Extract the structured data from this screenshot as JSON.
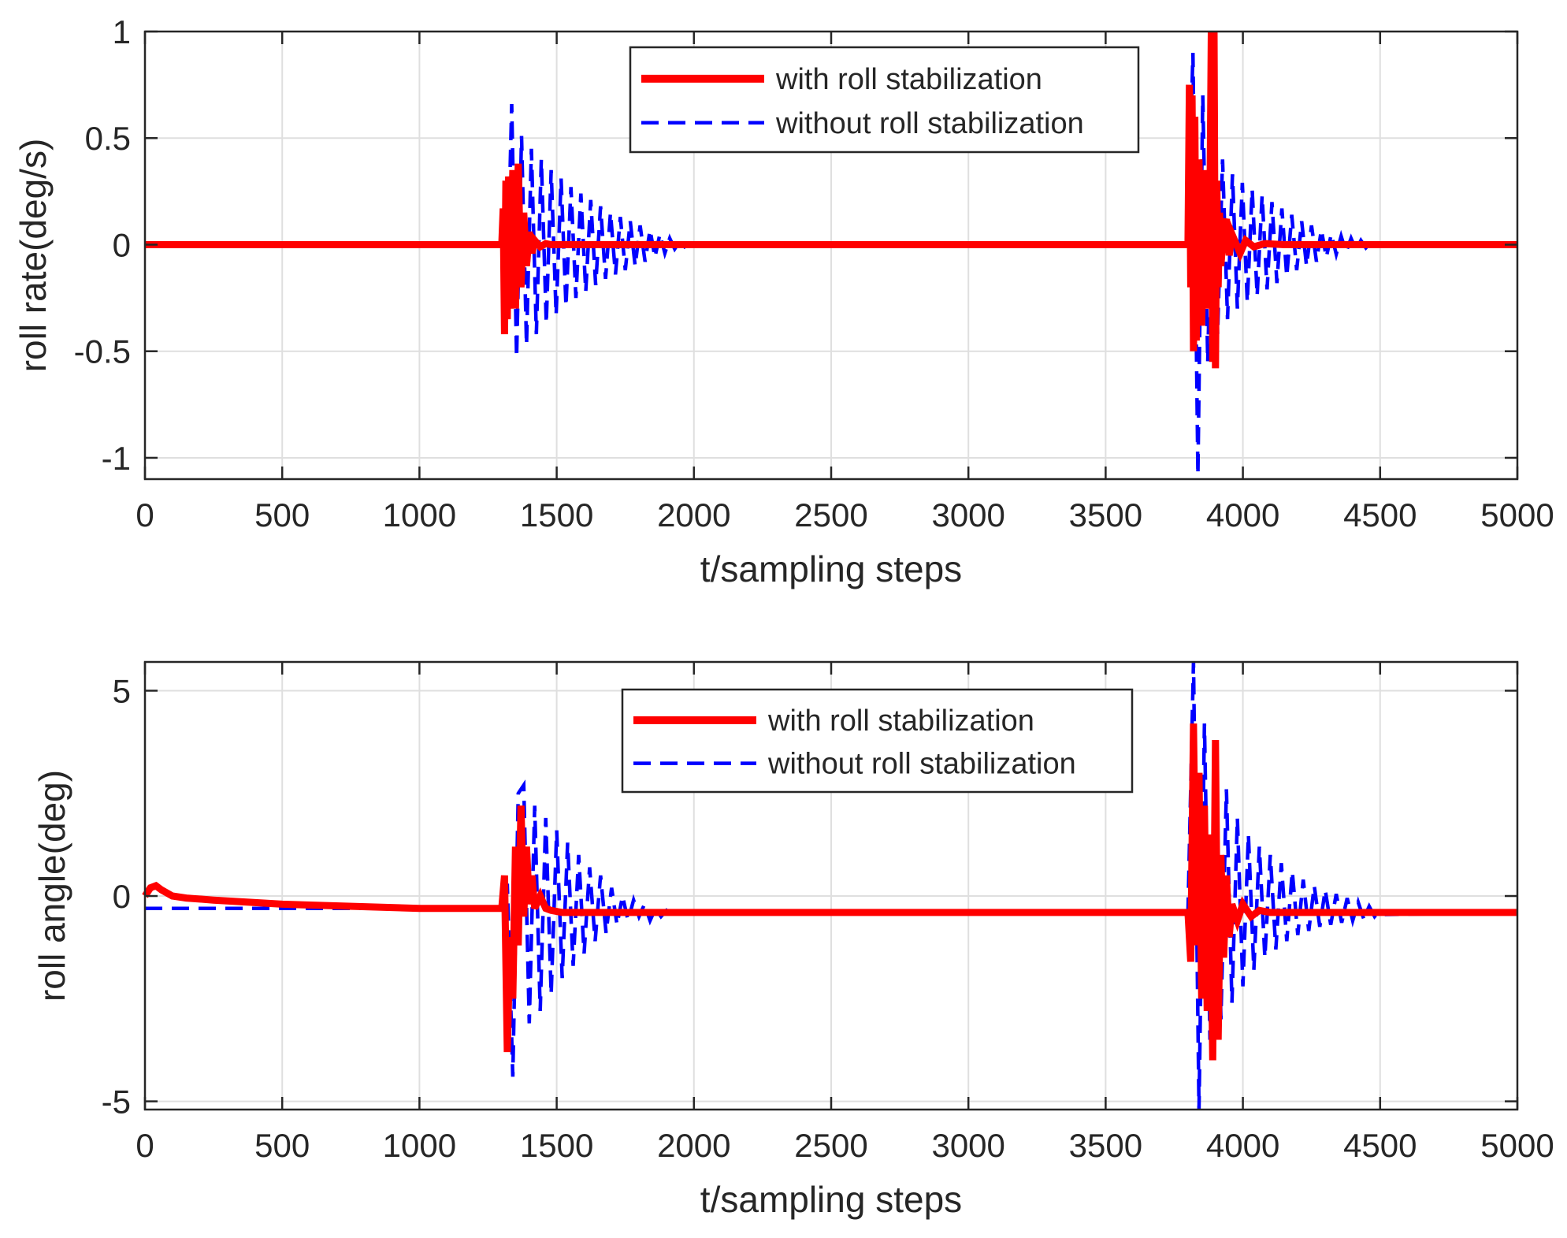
{
  "figure": {
    "background": "#ffffff",
    "axis_color": "#262626",
    "grid_color": "#dfdfdf",
    "series_colors": {
      "with": "#ff0000",
      "without": "#0000ff"
    }
  },
  "chart_data": [
    {
      "type": "line",
      "title": "",
      "xlabel": "t/sampling steps",
      "ylabel": "roll rate(deg/s)",
      "xlim": [
        0,
        5000
      ],
      "ylim": [
        -1.1,
        1
      ],
      "xticks": [
        0,
        500,
        1000,
        1500,
        2000,
        2500,
        3000,
        3500,
        4000,
        4500,
        5000
      ],
      "xtick_labels": [
        "0",
        "500",
        "1000",
        "1500",
        "2000",
        "2500",
        "3000",
        "3500",
        "4000",
        "4500",
        "5000"
      ],
      "yticks": [
        -1,
        -0.5,
        0,
        0.5,
        1
      ],
      "ytick_labels": [
        "-1",
        "-0.5",
        "0",
        "0.5",
        "1"
      ],
      "grid": true,
      "legend_position": "top-center",
      "series": [
        {
          "name": "with roll stabilization",
          "style": "solid",
          "x": [
            0,
            1300,
            1305,
            1310,
            1315,
            1320,
            1325,
            1330,
            1340,
            1350,
            1360,
            1370,
            1380,
            1390,
            1400,
            1410,
            1420,
            1440,
            1460,
            1480,
            1500,
            1540,
            1600,
            3800,
            3805,
            3810,
            3815,
            3820,
            3825,
            3830,
            3840,
            3850,
            3860,
            3870,
            3880,
            3885,
            3890,
            3895,
            3900,
            3905,
            3910,
            3915,
            3920,
            3930,
            3940,
            3950,
            3960,
            3970,
            3990,
            4010,
            4040,
            4080,
            4150,
            4300,
            5000
          ],
          "y": [
            0,
            0,
            0.17,
            -0.42,
            0.3,
            -0.35,
            0.32,
            -0.3,
            0.35,
            -0.3,
            0.38,
            -0.2,
            0.15,
            -0.1,
            0.06,
            -0.04,
            0.02,
            -0.01,
            0.005,
            0,
            0,
            0,
            0,
            0,
            0.75,
            -0.2,
            0.7,
            -0.5,
            0.6,
            -0.45,
            0.4,
            -0.38,
            0.35,
            -0.3,
            0.2,
            1.0,
            -0.55,
            1.0,
            -0.58,
            0.3,
            -0.2,
            0.15,
            -0.1,
            0.08,
            0.12,
            -0.05,
            0.05,
            0.02,
            -0.04,
            0.02,
            -0.01,
            0.005,
            0,
            0,
            0
          ]
        },
        {
          "name": "without roll stabilization",
          "style": "dashed",
          "x": [
            0,
            1300,
            1318,
            1336,
            1354,
            1372,
            1390,
            1408,
            1426,
            1444,
            1462,
            1480,
            1498,
            1516,
            1534,
            1552,
            1570,
            1588,
            1606,
            1624,
            1642,
            1660,
            1678,
            1696,
            1714,
            1732,
            1750,
            1768,
            1786,
            1804,
            1822,
            1840,
            1858,
            1876,
            1894,
            1912,
            1930,
            1948,
            1966,
            1984,
            2002,
            2020,
            3800,
            3818,
            3836,
            3854,
            3872,
            3890,
            3908,
            3926,
            3944,
            3962,
            3980,
            3998,
            4016,
            4034,
            4052,
            4070,
            4088,
            4106,
            4124,
            4142,
            4160,
            4178,
            4196,
            4214,
            4232,
            4250,
            4268,
            4286,
            4304,
            4322,
            4340,
            4358,
            4376,
            4394,
            4412,
            4430,
            4448,
            4466,
            4484,
            4502,
            4520,
            5000
          ],
          "y": [
            0,
            0,
            -0.3,
            0.66,
            -0.53,
            0.51,
            -0.47,
            0.45,
            -0.42,
            0.4,
            -0.37,
            0.35,
            -0.33,
            0.31,
            -0.29,
            0.27,
            -0.25,
            0.24,
            -0.22,
            0.21,
            -0.19,
            0.18,
            -0.16,
            0.15,
            -0.14,
            0.13,
            -0.12,
            0.11,
            -0.1,
            0.09,
            -0.08,
            0.07,
            -0.06,
            0.05,
            -0.04,
            0.03,
            -0.02,
            0.015,
            -0.01,
            0.005,
            0,
            0,
            0,
            0.9,
            -1.08,
            0.7,
            -0.55,
            0.5,
            -0.42,
            0.4,
            -0.35,
            0.33,
            -0.3,
            0.29,
            -0.27,
            0.26,
            -0.24,
            0.23,
            -0.21,
            0.2,
            -0.18,
            0.17,
            -0.15,
            0.14,
            -0.12,
            0.11,
            -0.1,
            0.09,
            -0.08,
            0.07,
            -0.06,
            0.05,
            -0.045,
            0.04,
            -0.035,
            0.03,
            -0.025,
            0.02,
            -0.015,
            0.01,
            -0.005,
            0.003,
            0,
            0
          ]
        }
      ]
    },
    {
      "type": "line",
      "title": "",
      "xlabel": "t/sampling steps",
      "ylabel": "roll angle(deg)",
      "xlim": [
        0,
        5000
      ],
      "ylim": [
        -5.2,
        5.7
      ],
      "xticks": [
        0,
        500,
        1000,
        1500,
        2000,
        2500,
        3000,
        3500,
        4000,
        4500,
        5000
      ],
      "xtick_labels": [
        "0",
        "500",
        "1000",
        "1500",
        "2000",
        "2500",
        "3000",
        "3500",
        "4000",
        "4500",
        "5000"
      ],
      "yticks": [
        -5,
        0,
        5
      ],
      "ytick_labels": [
        "-5",
        "0",
        "5"
      ],
      "grid": true,
      "legend_position": "top-center",
      "series": [
        {
          "name": "with roll stabilization",
          "style": "solid",
          "x": [
            0,
            20,
            40,
            60,
            100,
            150,
            250,
            500,
            1000,
            1300,
            1310,
            1320,
            1330,
            1340,
            1350,
            1360,
            1370,
            1380,
            1390,
            1400,
            1410,
            1420,
            1440,
            1460,
            1480,
            1520,
            1600,
            2000,
            3800,
            3810,
            3820,
            3830,
            3840,
            3850,
            3860,
            3870,
            3880,
            3890,
            3900,
            3910,
            3920,
            3930,
            3940,
            3950,
            3960,
            3980,
            4000,
            4030,
            4060,
            4100,
            4200,
            5000
          ],
          "y": [
            0,
            0.2,
            0.25,
            0.15,
            0,
            -0.05,
            -0.1,
            -0.2,
            -0.3,
            -0.3,
            0.5,
            -3.8,
            -1,
            -2.5,
            1.2,
            -1.2,
            2.2,
            -0.5,
            1.2,
            -0.2,
            0.5,
            -0.3,
            0,
            -0.3,
            -0.35,
            -0.4,
            -0.4,
            -0.4,
            -0.4,
            -1.6,
            4.2,
            -1.2,
            3.0,
            -2.5,
            2.2,
            -2.8,
            1.5,
            -4.0,
            3.8,
            -3.5,
            1.0,
            -1.5,
            0.5,
            -1.0,
            -0.2,
            -0.6,
            -0.2,
            -0.5,
            -0.35,
            -0.4,
            -0.4,
            -0.4
          ]
        },
        {
          "name": "without roll stabilization",
          "style": "dashed",
          "x": [
            0,
            1300,
            1320,
            1340,
            1360,
            1380,
            1400,
            1420,
            1440,
            1460,
            1480,
            1500,
            1520,
            1540,
            1560,
            1580,
            1600,
            1620,
            1640,
            1660,
            1680,
            1700,
            1720,
            1740,
            1760,
            1780,
            1800,
            1820,
            1840,
            1860,
            1880,
            1900,
            1920,
            1940,
            1960,
            1980,
            2000,
            3800,
            3820,
            3840,
            3860,
            3880,
            3900,
            3920,
            3940,
            3960,
            3980,
            4000,
            4020,
            4040,
            4060,
            4080,
            4100,
            4120,
            4140,
            4160,
            4180,
            4200,
            4220,
            4240,
            4260,
            4280,
            4300,
            4320,
            4340,
            4360,
            4380,
            4400,
            4420,
            4440,
            4460,
            4480,
            4500,
            4520,
            5000
          ],
          "y": [
            -0.3,
            -0.3,
            0.3,
            -4.4,
            2.5,
            2.7,
            -3.1,
            2.2,
            -2.8,
            1.9,
            -2.4,
            1.6,
            -2.0,
            1.3,
            -1.7,
            1.0,
            -1.4,
            0.7,
            -1.1,
            0.5,
            -0.9,
            0.2,
            -0.7,
            0.0,
            -0.6,
            -0.1,
            -0.5,
            -0.2,
            -0.6,
            -0.3,
            -0.5,
            -0.35,
            -0.45,
            -0.4,
            -0.42,
            -0.4,
            -0.4,
            -0.4,
            5.7,
            -5.2,
            4.2,
            -3.5,
            3.0,
            -3.0,
            2.6,
            -2.6,
            1.9,
            -2.2,
            1.5,
            -1.8,
            1.2,
            -1.5,
            1.0,
            -1.3,
            0.8,
            -1.1,
            0.6,
            -0.95,
            0.4,
            -0.85,
            0.25,
            -0.75,
            0.15,
            -0.7,
            0.05,
            -0.65,
            -0.05,
            -0.6,
            -0.15,
            -0.55,
            -0.25,
            -0.5,
            -0.35,
            -0.45,
            -0.4
          ]
        }
      ]
    }
  ]
}
